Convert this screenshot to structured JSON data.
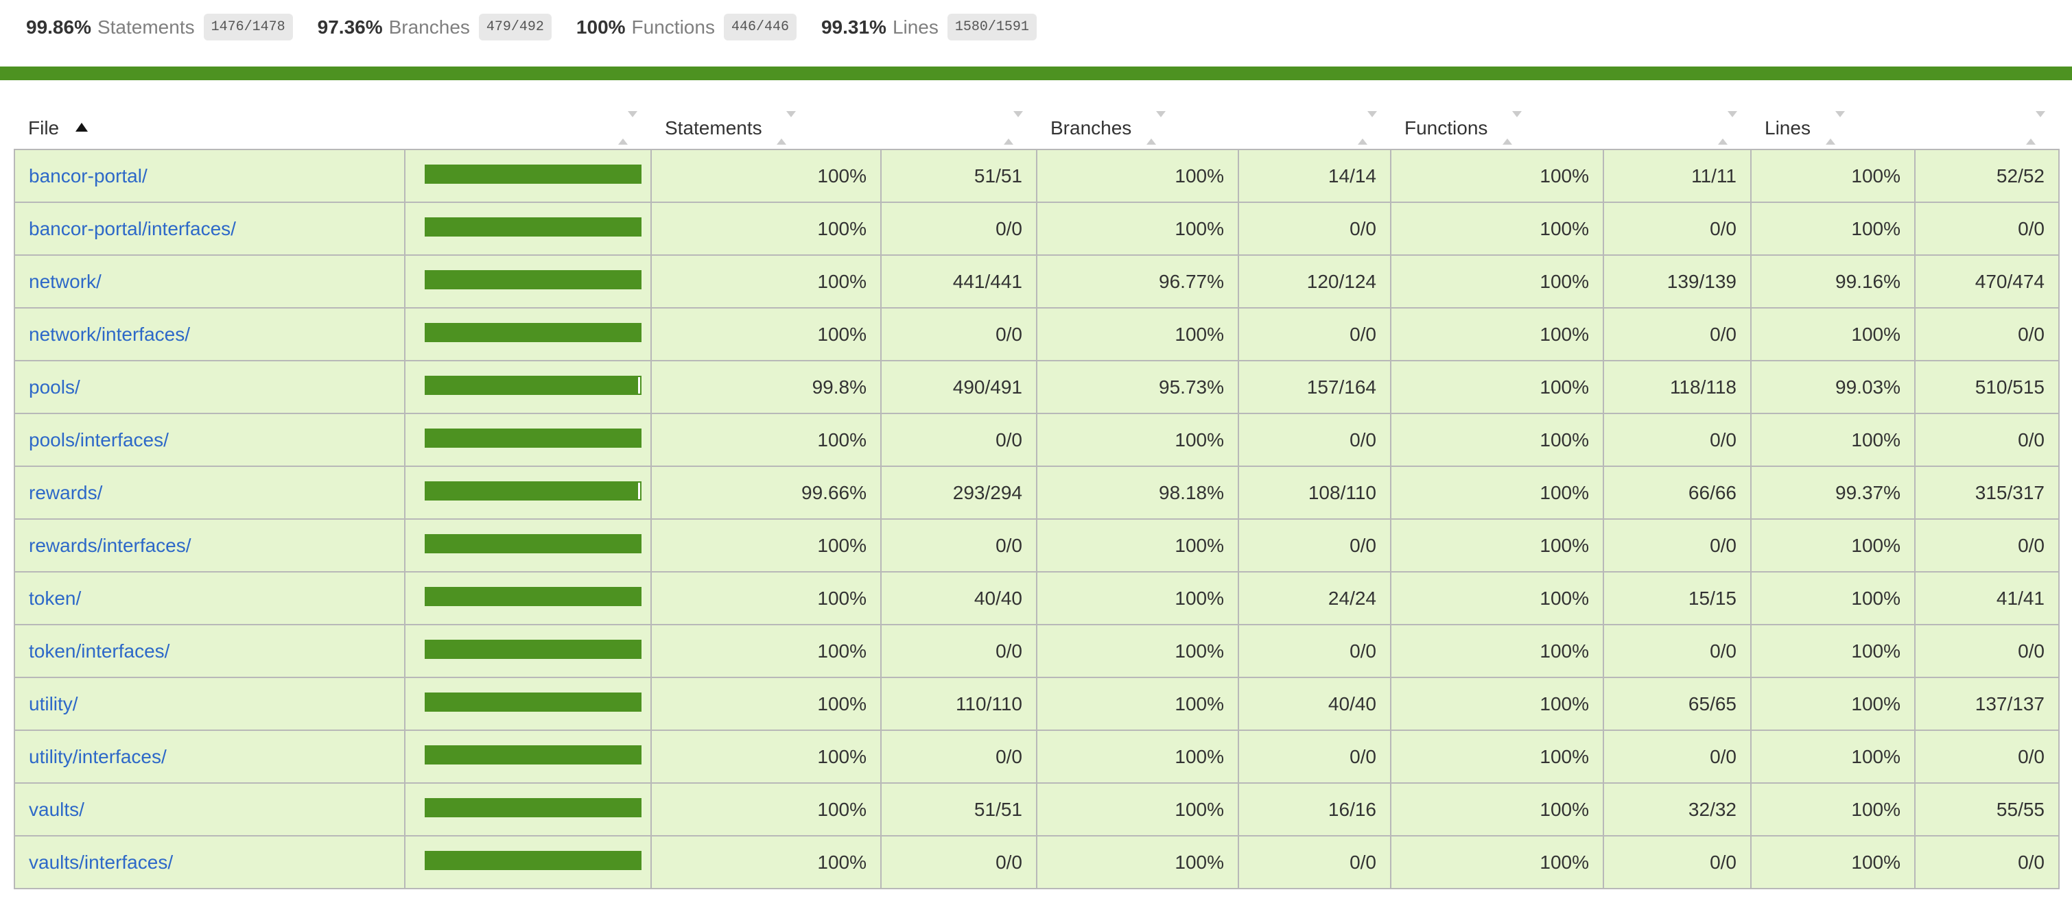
{
  "summary": {
    "metrics": [
      {
        "pct": "99.86%",
        "label": "Statements",
        "fraction": "1476/1478"
      },
      {
        "pct": "97.36%",
        "label": "Branches",
        "fraction": "479/492"
      },
      {
        "pct": "100%",
        "label": "Functions",
        "fraction": "446/446"
      },
      {
        "pct": "99.31%",
        "label": "Lines",
        "fraction": "1580/1591"
      }
    ]
  },
  "status_line": {
    "level": "high"
  },
  "icons": {
    "file_sort": "sorted-asc-triangle-icon",
    "column_sort": "sort-toggle-icon"
  },
  "table": {
    "columns": [
      {
        "key": "file",
        "label": "File",
        "sorted": "asc"
      },
      {
        "key": "pic",
        "label": ""
      },
      {
        "key": "statements",
        "label": "Statements"
      },
      {
        "key": "statements_raw",
        "label": ""
      },
      {
        "key": "branches",
        "label": "Branches"
      },
      {
        "key": "branches_raw",
        "label": ""
      },
      {
        "key": "functions",
        "label": "Functions"
      },
      {
        "key": "functions_raw",
        "label": ""
      },
      {
        "key": "lines",
        "label": "Lines"
      },
      {
        "key": "lines_raw",
        "label": ""
      }
    ],
    "rows": [
      {
        "file": "bancor-portal/",
        "bar_fill_pct": 100,
        "statements_pct": "100%",
        "statements_frac": "51/51",
        "branches_pct": "100%",
        "branches_frac": "14/14",
        "functions_pct": "100%",
        "functions_frac": "11/11",
        "lines_pct": "100%",
        "lines_frac": "52/52"
      },
      {
        "file": "bancor-portal/interfaces/",
        "bar_fill_pct": 100,
        "statements_pct": "100%",
        "statements_frac": "0/0",
        "branches_pct": "100%",
        "branches_frac": "0/0",
        "functions_pct": "100%",
        "functions_frac": "0/0",
        "lines_pct": "100%",
        "lines_frac": "0/0"
      },
      {
        "file": "network/",
        "bar_fill_pct": 100,
        "statements_pct": "100%",
        "statements_frac": "441/441",
        "branches_pct": "96.77%",
        "branches_frac": "120/124",
        "functions_pct": "100%",
        "functions_frac": "139/139",
        "lines_pct": "99.16%",
        "lines_frac": "470/474"
      },
      {
        "file": "network/interfaces/",
        "bar_fill_pct": 100,
        "statements_pct": "100%",
        "statements_frac": "0/0",
        "branches_pct": "100%",
        "branches_frac": "0/0",
        "functions_pct": "100%",
        "functions_frac": "0/0",
        "lines_pct": "100%",
        "lines_frac": "0/0"
      },
      {
        "file": "pools/",
        "bar_fill_pct": 99,
        "statements_pct": "99.8%",
        "statements_frac": "490/491",
        "branches_pct": "95.73%",
        "branches_frac": "157/164",
        "functions_pct": "100%",
        "functions_frac": "118/118",
        "lines_pct": "99.03%",
        "lines_frac": "510/515"
      },
      {
        "file": "pools/interfaces/",
        "bar_fill_pct": 100,
        "statements_pct": "100%",
        "statements_frac": "0/0",
        "branches_pct": "100%",
        "branches_frac": "0/0",
        "functions_pct": "100%",
        "functions_frac": "0/0",
        "lines_pct": "100%",
        "lines_frac": "0/0"
      },
      {
        "file": "rewards/",
        "bar_fill_pct": 99,
        "statements_pct": "99.66%",
        "statements_frac": "293/294",
        "branches_pct": "98.18%",
        "branches_frac": "108/110",
        "functions_pct": "100%",
        "functions_frac": "66/66",
        "lines_pct": "99.37%",
        "lines_frac": "315/317"
      },
      {
        "file": "rewards/interfaces/",
        "bar_fill_pct": 100,
        "statements_pct": "100%",
        "statements_frac": "0/0",
        "branches_pct": "100%",
        "branches_frac": "0/0",
        "functions_pct": "100%",
        "functions_frac": "0/0",
        "lines_pct": "100%",
        "lines_frac": "0/0"
      },
      {
        "file": "token/",
        "bar_fill_pct": 100,
        "statements_pct": "100%",
        "statements_frac": "40/40",
        "branches_pct": "100%",
        "branches_frac": "24/24",
        "functions_pct": "100%",
        "functions_frac": "15/15",
        "lines_pct": "100%",
        "lines_frac": "41/41"
      },
      {
        "file": "token/interfaces/",
        "bar_fill_pct": 100,
        "statements_pct": "100%",
        "statements_frac": "0/0",
        "branches_pct": "100%",
        "branches_frac": "0/0",
        "functions_pct": "100%",
        "functions_frac": "0/0",
        "lines_pct": "100%",
        "lines_frac": "0/0"
      },
      {
        "file": "utility/",
        "bar_fill_pct": 100,
        "statements_pct": "100%",
        "statements_frac": "110/110",
        "branches_pct": "100%",
        "branches_frac": "40/40",
        "functions_pct": "100%",
        "functions_frac": "65/65",
        "lines_pct": "100%",
        "lines_frac": "137/137"
      },
      {
        "file": "utility/interfaces/",
        "bar_fill_pct": 100,
        "statements_pct": "100%",
        "statements_frac": "0/0",
        "branches_pct": "100%",
        "branches_frac": "0/0",
        "functions_pct": "100%",
        "functions_frac": "0/0",
        "lines_pct": "100%",
        "lines_frac": "0/0"
      },
      {
        "file": "vaults/",
        "bar_fill_pct": 100,
        "statements_pct": "100%",
        "statements_frac": "51/51",
        "branches_pct": "100%",
        "branches_frac": "16/16",
        "functions_pct": "100%",
        "functions_frac": "32/32",
        "lines_pct": "100%",
        "lines_frac": "55/55"
      },
      {
        "file": "vaults/interfaces/",
        "bar_fill_pct": 100,
        "statements_pct": "100%",
        "statements_frac": "0/0",
        "branches_pct": "100%",
        "branches_frac": "0/0",
        "functions_pct": "100%",
        "functions_frac": "0/0",
        "lines_pct": "100%",
        "lines_frac": "0/0"
      }
    ]
  },
  "colors": {
    "accent_green": "#4d9221",
    "row_bg": "#e6f5d0",
    "border_grey": "#b8b8b8",
    "link_blue": "#2d68c8",
    "fraction_bg": "#e8e8e8",
    "quiet_text": "#7f7f7f"
  }
}
